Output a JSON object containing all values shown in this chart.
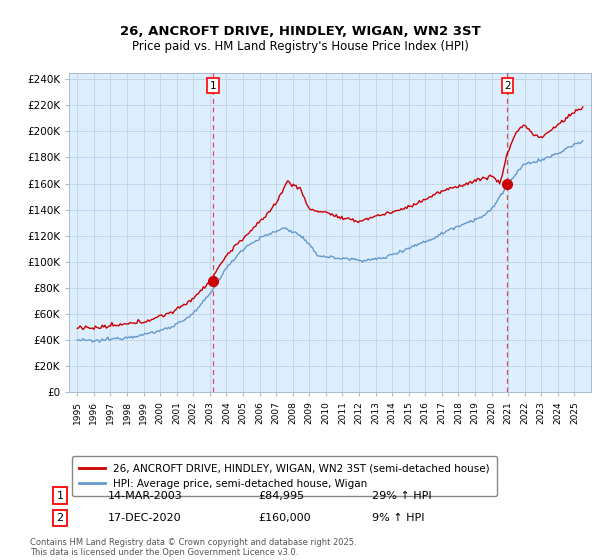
{
  "title": "26, ANCROFT DRIVE, HINDLEY, WIGAN, WN2 3ST",
  "subtitle": "Price paid vs. HM Land Registry's House Price Index (HPI)",
  "ylabel_ticks": [
    "£0",
    "£20K",
    "£40K",
    "£60K",
    "£80K",
    "£100K",
    "£120K",
    "£140K",
    "£160K",
    "£180K",
    "£200K",
    "£220K",
    "£240K"
  ],
  "ytick_values": [
    0,
    20000,
    40000,
    60000,
    80000,
    100000,
    120000,
    140000,
    160000,
    180000,
    200000,
    220000,
    240000
  ],
  "ylim": [
    0,
    245000
  ],
  "legend_line1": "26, ANCROFT DRIVE, HINDLEY, WIGAN, WN2 3ST (semi-detached house)",
  "legend_line2": "HPI: Average price, semi-detached house, Wigan",
  "marker1_date": "14-MAR-2003",
  "marker1_price": "£84,995",
  "marker1_hpi": "29% ↑ HPI",
  "marker2_date": "17-DEC-2020",
  "marker2_price": "£160,000",
  "marker2_hpi": "9% ↑ HPI",
  "footer": "Contains HM Land Registry data © Crown copyright and database right 2025.\nThis data is licensed under the Open Government Licence v3.0.",
  "line_color_red": "#cc0000",
  "line_color_blue": "#6699cc",
  "chart_bg": "#ddeeff",
  "background_color": "#ffffff",
  "grid_color": "#bbccdd",
  "sale1_x": 2003.21,
  "sale1_y": 84995,
  "sale2_x": 2020.96,
  "sale2_y": 160000,
  "xlim_start": 1994.5,
  "xlim_end": 2026.0
}
